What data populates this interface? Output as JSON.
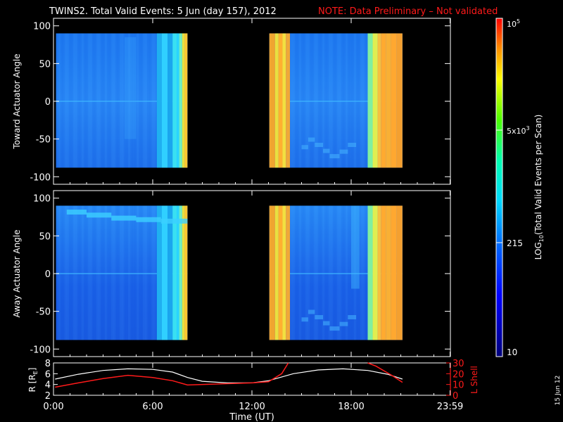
{
  "title": {
    "main": "TWINS2. Total Valid Events:  5 Jun (day 157), 2012",
    "note": "NOTE: Data Preliminary – Not validated",
    "main_color": "#ffffff",
    "note_color": "#ff1a1a"
  },
  "date_stamp": "15 Jun 12",
  "panels": {
    "top": {
      "ylabel": "Toward Actuator Angle",
      "yticks": [
        "100",
        "50",
        "0",
        "-50",
        "-100"
      ],
      "ylim": [
        -110,
        110
      ]
    },
    "middle": {
      "ylabel": "Away Actuator Angle",
      "yticks": [
        "100",
        "50",
        "0",
        "-50",
        "-100"
      ],
      "ylim": [
        -110,
        110
      ]
    },
    "bottom": {
      "ylabel_left": "R [R",
      "ylabel_left_sub": "E",
      "ylabel_left_close": "]",
      "ylabel_right": "L Shell",
      "yticks_left": [
        "8",
        "6",
        "4",
        "2"
      ],
      "yticks_right": [
        "30",
        "20",
        "10",
        "0"
      ]
    }
  },
  "xaxis": {
    "label": "Time (UT)",
    "ticks": [
      "0:00",
      "6:00",
      "12:00",
      "18:00",
      "23:59"
    ],
    "tick_hours": [
      0,
      6,
      12,
      18,
      23.98
    ]
  },
  "colorbar": {
    "label_main": "LOG",
    "label_sub": "10",
    "label_rest": "(Total Valid  Events per Scan)",
    "top_tick_base": "10",
    "top_tick_exp": "5",
    "mid_tick_base": "5x10",
    "mid_tick_exp": "3",
    "tick_215": "215",
    "tick_10": "10"
  },
  "chart_data": [
    {
      "type": "heatmap",
      "panel": "Toward Actuator Angle",
      "x_unit": "hours UT",
      "x_range": [
        0,
        24
      ],
      "y_range": [
        -110,
        110
      ],
      "data_segments_hours": [
        [
          0.15,
          8.1
        ],
        [
          13.05,
          21.1
        ]
      ],
      "angle_coverage": [
        -88,
        90
      ],
      "colorscale": "log10 counts, 10 to 1e5",
      "description_values": {
        "bright_bands_hours": [
          [
            6.25,
            8.1
          ],
          [
            13.05,
            14.3
          ],
          [
            19.0,
            21.1
          ]
        ]
      }
    },
    {
      "type": "heatmap",
      "panel": "Away Actuator Angle",
      "x_unit": "hours UT",
      "x_range": [
        0,
        24
      ],
      "y_range": [
        -110,
        110
      ],
      "data_segments_hours": [
        [
          0.15,
          8.1
        ],
        [
          13.05,
          21.1
        ]
      ],
      "angle_coverage": [
        -88,
        90
      ]
    },
    {
      "type": "line",
      "panel": "R and L Shell",
      "x_range": [
        0,
        24
      ],
      "series": [
        {
          "name": "R [RE]",
          "color": "#ffffff",
          "axis": "left",
          "x": [
            0.1,
            1.5,
            3.0,
            4.5,
            6.0,
            7.2,
            8.1,
            9.0,
            10.5,
            12.0,
            13.0,
            14.5,
            16.0,
            17.5,
            19.0,
            20.2,
            21.1
          ],
          "y": [
            5.0,
            5.9,
            6.6,
            6.9,
            6.8,
            6.3,
            5.3,
            4.6,
            4.3,
            4.3,
            4.7,
            6.0,
            6.7,
            6.9,
            6.6,
            5.9,
            5.0
          ],
          "ylim": [
            2,
            8
          ]
        },
        {
          "name": "L Shell",
          "color": "#ff1a1a",
          "axis": "right",
          "x": [
            0.1,
            1.5,
            3.0,
            4.5,
            6.0,
            7.2,
            8.1,
            10.0,
            12.0,
            13.0,
            13.8,
            14.2,
            19.0,
            19.5,
            20.5,
            21.1
          ],
          "y": [
            7.5,
            11.5,
            15.5,
            18.5,
            16.5,
            13.5,
            9.5,
            10.5,
            11.5,
            12.5,
            20,
            33,
            33,
            27,
            18,
            12
          ],
          "ylim": [
            0,
            30
          ]
        }
      ]
    }
  ]
}
